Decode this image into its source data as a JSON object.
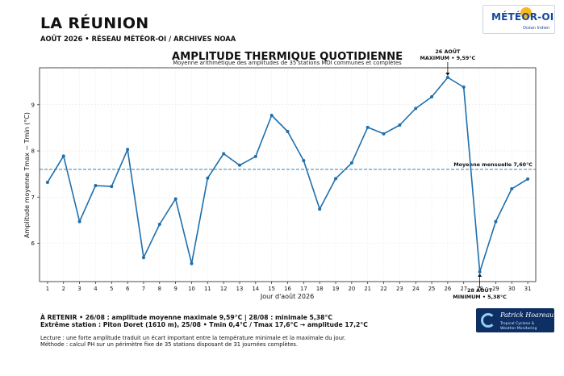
{
  "header": {
    "region": "LA RÉUNION",
    "subtitle": "AOÛT 2026 • RÉSEAU MÉTÉOR-OI / ARCHIVES NOAA"
  },
  "logo": {
    "brand": "MÉTÉOR-OI",
    "tagline": "Océan Indien",
    "icon": "sun-icon"
  },
  "chart_data": {
    "type": "line",
    "title": "AMPLITUDE THERMIQUE QUOTIDIENNE",
    "subtitle": "Moyenne arithmétique des amplitudes de 35 stations MOI communes et complètes",
    "xlabel": "Jour d'août 2026",
    "ylabel": "Amplitude moyenne Tmax − Tmin (°C)",
    "xlim": [
      0.5,
      31.5
    ],
    "ylim": [
      5.17,
      9.8
    ],
    "yticks": [
      6,
      7,
      8,
      9
    ],
    "grid": true,
    "x": [
      1,
      2,
      3,
      4,
      5,
      6,
      7,
      8,
      9,
      10,
      11,
      12,
      13,
      14,
      15,
      16,
      17,
      18,
      19,
      20,
      21,
      22,
      23,
      24,
      25,
      26,
      27,
      28,
      29,
      30,
      31
    ],
    "series": [
      {
        "name": "",
        "color": "#1f6fab",
        "values": [
          7.32,
          7.89,
          6.47,
          7.25,
          7.23,
          8.03,
          5.69,
          6.41,
          6.96,
          5.56,
          7.41,
          7.94,
          7.69,
          7.88,
          8.77,
          8.42,
          7.79,
          6.74,
          7.4,
          7.74,
          8.51,
          8.37,
          8.56,
          8.92,
          9.17,
          9.59,
          9.38,
          5.38,
          6.47,
          7.18,
          7.39
        ]
      }
    ],
    "mean_line": {
      "value": 7.6,
      "label": "Moyenne mensuelle  7,60°C",
      "color": "#1f6fab"
    },
    "annotations": [
      {
        "x": 26,
        "y": 9.59,
        "line1": "26 AOÛT",
        "line2": "MAXIMUM • 9,59°C"
      },
      {
        "x": 28,
        "y": 5.38,
        "line1": "28 AOÛT",
        "line2": "MINIMUM • 5,38°C"
      }
    ]
  },
  "footer": {
    "line1": "À RETENIR  •  26/08 : amplitude moyenne maximale 9,59°C  |  28/08 : minimale 5,38°C",
    "line2": "Extrême station : Piton Doret (1610 m), 25/08 • Tmin 0,4°C / Tmax 17,6°C → amplitude 17,2°C",
    "line3": "Lecture : une forte amplitude traduit un écart important entre la température minimale et la maximale du jour.",
    "line4": "Méthode : calcul PH sur un périmètre fixe de 35 stations disposant de 31 journées complètes."
  },
  "badge": {
    "name": "Patrick Hoareau",
    "tagline1": "Tropical Cyclone &",
    "tagline2": "Weather Monitoring",
    "icon": "cyclone-icon"
  }
}
